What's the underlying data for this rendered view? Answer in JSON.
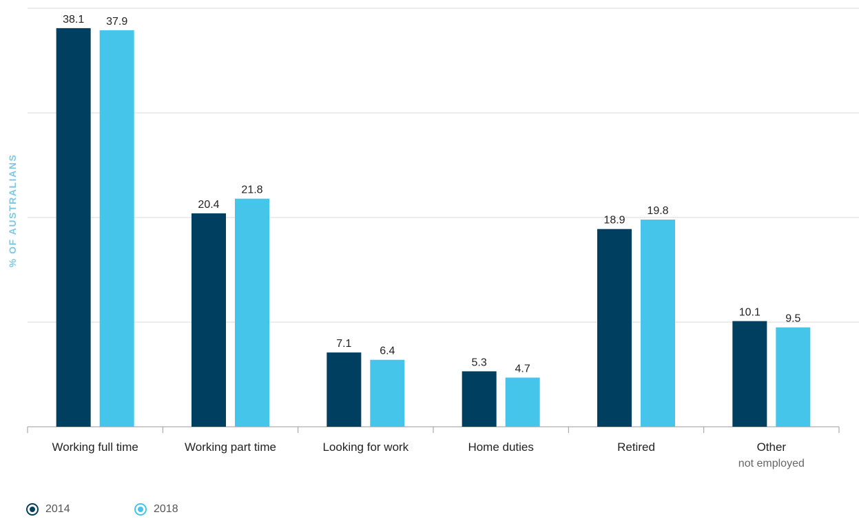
{
  "chart_data": {
    "type": "bar",
    "ylabel": "% OF AUSTRALIANS",
    "categories": [
      {
        "label": "Working full time",
        "sublabel": ""
      },
      {
        "label": "Working part time",
        "sublabel": ""
      },
      {
        "label": "Looking for work",
        "sublabel": ""
      },
      {
        "label": "Home duties",
        "sublabel": ""
      },
      {
        "label": "Retired",
        "sublabel": ""
      },
      {
        "label": "Other",
        "sublabel": "not employed"
      }
    ],
    "series": [
      {
        "name": "2014",
        "color": "#003f5f",
        "values": [
          38.1,
          20.4,
          7.1,
          5.3,
          18.9,
          10.1
        ]
      },
      {
        "name": "2018",
        "color": "#45c5ea",
        "values": [
          37.9,
          21.8,
          6.4,
          4.7,
          19.8,
          9.5
        ]
      }
    ],
    "ylim": [
      0,
      40
    ],
    "grid": true,
    "legend_position": "bottom-left"
  }
}
